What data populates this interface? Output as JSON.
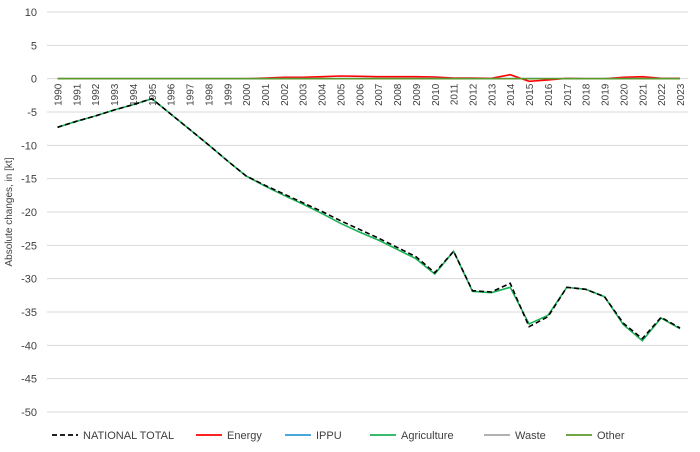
{
  "chart_data": {
    "type": "line",
    "title": "",
    "xlabel": "",
    "ylabel": "Absolute changes, in [kt]",
    "ylim": [
      -50,
      10
    ],
    "yticks": [
      10,
      5,
      0,
      -5,
      -10,
      -15,
      -20,
      -25,
      -30,
      -35,
      -40,
      -45,
      -50
    ],
    "grid": true,
    "legend_position": "bottom",
    "x": [
      1990,
      1991,
      1992,
      1993,
      1994,
      1995,
      1996,
      1997,
      1998,
      1999,
      2000,
      2001,
      2002,
      2003,
      2004,
      2005,
      2006,
      2007,
      2008,
      2009,
      2010,
      2011,
      2012,
      2013,
      2014,
      2015,
      2016,
      2017,
      2018,
      2019,
      2020,
      2021,
      2022,
      2023
    ],
    "series": [
      {
        "name": "NATIONAL TOTAL",
        "color": "#000000",
        "dash": true,
        "values": [
          -7.3,
          -6.4,
          -5.6,
          -4.7,
          -3.9,
          -3.0,
          -5.3,
          -7.6,
          -9.9,
          -12.3,
          -14.6,
          -16.0,
          -17.3,
          -18.6,
          -19.9,
          -21.3,
          -22.6,
          -23.9,
          -25.3,
          -26.7,
          -29.1,
          -25.9,
          -31.8,
          -32.0,
          -30.7,
          -37.2,
          -35.7,
          -31.3,
          -31.6,
          -32.7,
          -36.7,
          -39.0,
          -35.8,
          -37.4
        ]
      },
      {
        "name": "Energy",
        "color": "#ff0000",
        "values": [
          0,
          0,
          0,
          0,
          0,
          0,
          0,
          0,
          0,
          0,
          0,
          0.1,
          0.2,
          0.2,
          0.3,
          0.4,
          0.35,
          0.3,
          0.3,
          0.3,
          0.25,
          0.1,
          0.1,
          0.05,
          0.6,
          -0.4,
          -0.2,
          0.05,
          0,
          0,
          0.2,
          0.3,
          0.05,
          0.05
        ]
      },
      {
        "name": "IPPU",
        "color": "#2e9bd6",
        "values": [
          0,
          0,
          0,
          0,
          0,
          0,
          0,
          0,
          0,
          0,
          0,
          0,
          0,
          0,
          0,
          0,
          0,
          0,
          0,
          0,
          0,
          0,
          0,
          0,
          0,
          0,
          0,
          0,
          0,
          0,
          0,
          0,
          0,
          0
        ]
      },
      {
        "name": "Agriculture",
        "color": "#1bb157",
        "values": [
          -7.3,
          -6.4,
          -5.6,
          -4.7,
          -3.9,
          -3.0,
          -5.3,
          -7.6,
          -9.9,
          -12.3,
          -14.6,
          -16.1,
          -17.5,
          -18.8,
          -20.2,
          -21.7,
          -23.0,
          -24.2,
          -25.6,
          -27.0,
          -29.3,
          -25.9,
          -31.9,
          -32.1,
          -31.3,
          -36.8,
          -35.5,
          -31.3,
          -31.6,
          -32.7,
          -36.9,
          -39.3,
          -35.9,
          -37.5
        ]
      },
      {
        "name": "Waste",
        "color": "#a6a6a6",
        "values": [
          0,
          0,
          0,
          0,
          0,
          0,
          0,
          0,
          0,
          0,
          0,
          0,
          0,
          0,
          0,
          0,
          0,
          0,
          0,
          0,
          0,
          0,
          0,
          0,
          0,
          0,
          0,
          0,
          0,
          0,
          0,
          0,
          0,
          0
        ]
      },
      {
        "name": "Other",
        "color": "#5b9a2c",
        "values": [
          0,
          0,
          0,
          0,
          0,
          0,
          0,
          0,
          0,
          0,
          0,
          0,
          0,
          0,
          0,
          0,
          0,
          0,
          0,
          0,
          0,
          0,
          0,
          0,
          0,
          0,
          0,
          0,
          0,
          0,
          0,
          0,
          0,
          0
        ]
      }
    ]
  }
}
